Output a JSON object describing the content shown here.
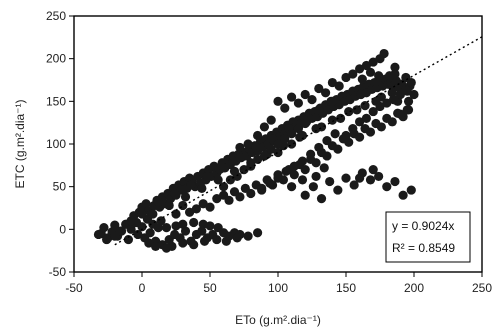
{
  "chart_data": {
    "type": "scatter",
    "xlabel": "ETo (g.m².dia⁻¹)",
    "ylabel": "ETC (g.m².dia⁻¹)",
    "xlim": [
      -50,
      250
    ],
    "ylim": [
      -50,
      250
    ],
    "xticks": [
      "-50",
      "0",
      "50",
      "100",
      "150",
      "200",
      "250"
    ],
    "yticks": [
      "-50",
      "0",
      "50",
      "100",
      "150",
      "200",
      "250"
    ],
    "grid": false,
    "legend": "none",
    "series": [
      {
        "marker_color": "#1a1a1a",
        "points": [
          [
            -30,
            -5
          ],
          [
            -28,
            2
          ],
          [
            -25,
            -10
          ],
          [
            -22,
            -3
          ],
          [
            -20,
            5
          ],
          [
            -18,
            -8
          ],
          [
            -15,
            -2
          ],
          [
            -12,
            6
          ],
          [
            -10,
            -12
          ],
          [
            -8,
            0
          ],
          [
            -5,
            8
          ],
          [
            -3,
            -6
          ],
          [
            0,
            3
          ],
          [
            2,
            -10
          ],
          [
            4,
            12
          ],
          [
            6,
            -4
          ],
          [
            8,
            6
          ],
          [
            10,
            -14
          ],
          [
            12,
            2
          ],
          [
            14,
            10
          ],
          [
            -6,
            16
          ],
          [
            -2,
            20
          ],
          [
            0,
            26
          ],
          [
            3,
            30
          ],
          [
            5,
            22
          ],
          [
            7,
            18
          ],
          [
            9,
            28
          ],
          [
            11,
            34
          ],
          [
            13,
            26
          ],
          [
            15,
            38
          ],
          [
            17,
            30
          ],
          [
            19,
            42
          ],
          [
            21,
            36
          ],
          [
            23,
            48
          ],
          [
            25,
            40
          ],
          [
            27,
            52
          ],
          [
            29,
            46
          ],
          [
            31,
            56
          ],
          [
            33,
            48
          ],
          [
            35,
            60
          ],
          [
            20,
            -12
          ],
          [
            24,
            -6
          ],
          [
            28,
            -10
          ],
          [
            32,
            -2
          ],
          [
            36,
            -14
          ],
          [
            40,
            -6
          ],
          [
            44,
            -2
          ],
          [
            48,
            -10
          ],
          [
            52,
            -6
          ],
          [
            56,
            2
          ],
          [
            60,
            -4
          ],
          [
            64,
            -8
          ],
          [
            68,
            -4
          ],
          [
            72,
            -6
          ],
          [
            50,
            4
          ],
          [
            45,
            6
          ],
          [
            38,
            8
          ],
          [
            30,
            6
          ],
          [
            25,
            4
          ],
          [
            18,
            2
          ],
          [
            15,
            -18
          ],
          [
            22,
            -20
          ],
          [
            30,
            -16
          ],
          [
            38,
            -18
          ],
          [
            46,
            -14
          ],
          [
            55,
            -12
          ],
          [
            62,
            -14
          ],
          [
            70,
            -10
          ],
          [
            78,
            -8
          ],
          [
            85,
            -4
          ],
          [
            37,
            58
          ],
          [
            39,
            50
          ],
          [
            41,
            62
          ],
          [
            43,
            54
          ],
          [
            45,
            66
          ],
          [
            47,
            58
          ],
          [
            49,
            70
          ],
          [
            51,
            62
          ],
          [
            53,
            74
          ],
          [
            55,
            66
          ],
          [
            57,
            70
          ],
          [
            59,
            78
          ],
          [
            61,
            72
          ],
          [
            63,
            82
          ],
          [
            65,
            76
          ],
          [
            67,
            86
          ],
          [
            69,
            80
          ],
          [
            71,
            88
          ],
          [
            73,
            84
          ],
          [
            75,
            90
          ],
          [
            77,
            86
          ],
          [
            79,
            94
          ],
          [
            81,
            90
          ],
          [
            83,
            98
          ],
          [
            85,
            92
          ],
          [
            87,
            102
          ],
          [
            89,
            96
          ],
          [
            91,
            106
          ],
          [
            93,
            100
          ],
          [
            95,
            110
          ],
          [
            97,
            104
          ],
          [
            99,
            114
          ],
          [
            101,
            108
          ],
          [
            103,
            118
          ],
          [
            105,
            112
          ],
          [
            107,
            122
          ],
          [
            109,
            116
          ],
          [
            111,
            126
          ],
          [
            113,
            120
          ],
          [
            115,
            128
          ],
          [
            117,
            124
          ],
          [
            119,
            132
          ],
          [
            121,
            126
          ],
          [
            123,
            136
          ],
          [
            125,
            130
          ],
          [
            127,
            138
          ],
          [
            129,
            132
          ],
          [
            131,
            142
          ],
          [
            133,
            136
          ],
          [
            135,
            146
          ],
          [
            137,
            140
          ],
          [
            139,
            150
          ],
          [
            141,
            144
          ],
          [
            143,
            152
          ],
          [
            145,
            146
          ],
          [
            147,
            156
          ],
          [
            149,
            150
          ],
          [
            151,
            158
          ],
          [
            153,
            152
          ],
          [
            155,
            162
          ],
          [
            157,
            156
          ],
          [
            159,
            164
          ],
          [
            161,
            158
          ],
          [
            163,
            168
          ],
          [
            165,
            160
          ],
          [
            167,
            170
          ],
          [
            169,
            164
          ],
          [
            171,
            172
          ],
          [
            173,
            166
          ],
          [
            175,
            174
          ],
          [
            177,
            168
          ],
          [
            179,
            176
          ],
          [
            181,
            170
          ],
          [
            183,
            172
          ],
          [
            185,
            168
          ],
          [
            187,
            174
          ],
          [
            189,
            166
          ],
          [
            191,
            170
          ],
          [
            194,
            164
          ],
          [
            197,
            168
          ],
          [
            60,
            40
          ],
          [
            64,
            34
          ],
          [
            68,
            44
          ],
          [
            72,
            38
          ],
          [
            76,
            48
          ],
          [
            80,
            42
          ],
          [
            84,
            52
          ],
          [
            88,
            46
          ],
          [
            92,
            58
          ],
          [
            96,
            52
          ],
          [
            100,
            64
          ],
          [
            104,
            58
          ],
          [
            108,
            70
          ],
          [
            112,
            64
          ],
          [
            116,
            76
          ],
          [
            120,
            70
          ],
          [
            124,
            82
          ],
          [
            128,
            78
          ],
          [
            132,
            90
          ],
          [
            136,
            86
          ],
          [
            140,
            98
          ],
          [
            144,
            94
          ],
          [
            148,
            106
          ],
          [
            152,
            102
          ],
          [
            156,
            112
          ],
          [
            160,
            108
          ],
          [
            164,
            118
          ],
          [
            168,
            114
          ],
          [
            172,
            124
          ],
          [
            176,
            120
          ],
          [
            180,
            130
          ],
          [
            184,
            126
          ],
          [
            188,
            136
          ],
          [
            192,
            132
          ],
          [
            196,
            140
          ],
          [
            100,
            150
          ],
          [
            105,
            142
          ],
          [
            110,
            155
          ],
          [
            115,
            148
          ],
          [
            120,
            158
          ],
          [
            125,
            152
          ],
          [
            130,
            165
          ],
          [
            135,
            160
          ],
          [
            140,
            172
          ],
          [
            145,
            168
          ],
          [
            150,
            178
          ],
          [
            155,
            182
          ],
          [
            160,
            188
          ],
          [
            165,
            192
          ],
          [
            170,
            196
          ],
          [
            175,
            200
          ],
          [
            178,
            206
          ],
          [
            182,
            180
          ],
          [
            186,
            190
          ],
          [
            168,
            184
          ],
          [
            120,
            40
          ],
          [
            126,
            50
          ],
          [
            132,
            36
          ],
          [
            138,
            56
          ],
          [
            144,
            46
          ],
          [
            150,
            60
          ],
          [
            156,
            52
          ],
          [
            162,
            66
          ],
          [
            168,
            58
          ],
          [
            174,
            62
          ],
          [
            180,
            50
          ],
          [
            186,
            56
          ],
          [
            192,
            40
          ],
          [
            198,
            46
          ],
          [
            110,
            50
          ],
          [
            118,
            58
          ],
          [
            128,
            62
          ],
          [
            134,
            72
          ],
          [
            160,
            60
          ],
          [
            170,
            70
          ],
          [
            190,
            135
          ],
          [
            195,
            140
          ],
          [
            188,
            150
          ],
          [
            176,
            155
          ],
          [
            164,
            145
          ],
          [
            152,
            138
          ],
          [
            140,
            128
          ],
          [
            128,
            118
          ],
          [
            116,
            108
          ],
          [
            104,
            98
          ],
          [
            92,
            88
          ],
          [
            80,
            78
          ],
          [
            68,
            68
          ],
          [
            56,
            58
          ],
          [
            44,
            48
          ],
          [
            32,
            38
          ],
          [
            20,
            28
          ],
          [
            8,
            18
          ],
          [
            -4,
            8
          ],
          [
            -16,
            -2
          ],
          [
            90,
            120
          ],
          [
            85,
            110
          ],
          [
            95,
            128
          ],
          [
            78,
            100
          ],
          [
            72,
            96
          ],
          [
            100,
            90
          ],
          [
            110,
            100
          ],
          [
            118,
            110
          ],
          [
            132,
            120
          ],
          [
            146,
            130
          ],
          [
            158,
            140
          ],
          [
            172,
            150
          ],
          [
            184,
            160
          ],
          [
            196,
            150
          ],
          [
            200,
            158
          ],
          [
            198,
            172
          ],
          [
            194,
            178
          ],
          [
            186,
            182
          ],
          [
            174,
            180
          ],
          [
            162,
            176
          ],
          [
            140,
            150
          ],
          [
            130,
            140
          ],
          [
            120,
            128
          ],
          [
            108,
            118
          ],
          [
            96,
            106
          ],
          [
            84,
            96
          ],
          [
            72,
            84
          ],
          [
            60,
            72
          ],
          [
            48,
            62
          ],
          [
            36,
            52
          ],
          [
            24,
            42
          ],
          [
            12,
            32
          ],
          [
            0,
            18
          ],
          [
            -8,
            10
          ],
          [
            -20,
            -8
          ],
          [
            -26,
            -12
          ],
          [
            -32,
            -6
          ],
          [
            5,
            -16
          ],
          [
            10,
            -20
          ],
          [
            18,
            -22
          ],
          [
            45,
            30
          ],
          [
            50,
            26
          ],
          [
            55,
            36
          ],
          [
            40,
            24
          ],
          [
            35,
            20
          ],
          [
            30,
            28
          ],
          [
            25,
            18
          ],
          [
            60,
            50
          ],
          [
            65,
            58
          ],
          [
            70,
            62
          ],
          [
            75,
            70
          ],
          [
            80,
            74
          ],
          [
            85,
            82
          ],
          [
            90,
            86
          ],
          [
            95,
            94
          ],
          [
            100,
            100
          ],
          [
            105,
            106
          ],
          [
            110,
            112
          ],
          [
            115,
            118
          ],
          [
            120,
            124
          ],
          [
            150,
            110
          ],
          [
            155,
            118
          ],
          [
            160,
            126
          ],
          [
            165,
            130
          ],
          [
            170,
            138
          ],
          [
            175,
            144
          ],
          [
            180,
            148
          ],
          [
            185,
            152
          ],
          [
            190,
            158
          ],
          [
            195,
            162
          ],
          [
            142,
            112
          ],
          [
            136,
            104
          ],
          [
            130,
            96
          ],
          [
            124,
            88
          ],
          [
            118,
            80
          ],
          [
            112,
            74
          ],
          [
            106,
            68
          ],
          [
            100,
            60
          ],
          [
            94,
            54
          ],
          [
            88,
            48
          ]
        ]
      }
    ],
    "trendline": {
      "slope": 0.9024,
      "intercept": 0,
      "style": "dotted"
    },
    "annotation": {
      "equation": "y = 0.9024x",
      "r2": "R² = 0.8549",
      "position": "bottom-right"
    }
  }
}
